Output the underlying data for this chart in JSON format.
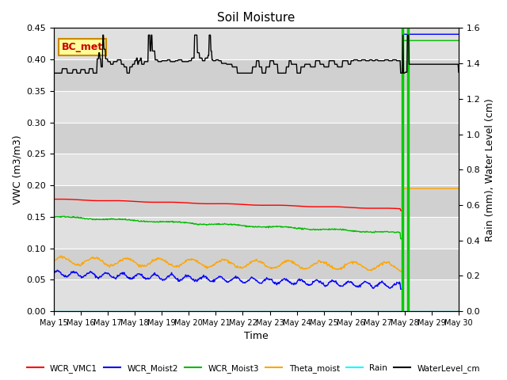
{
  "title": "Soil Moisture",
  "xlabel": "Time",
  "ylabel_left": "VWC (m3/m3)",
  "ylabel_right": "Rain (mm), Water Level (cm)",
  "xlim_days": [
    0,
    15
  ],
  "ylim_left": [
    0.0,
    0.45
  ],
  "ylim_right": [
    0.0,
    1.6
  ],
  "bg_color": "#e8e8e8",
  "bg_color2": "#d0d0d0",
  "bc_met_label": "BC_met",
  "legend_labels": [
    "WCR_VMC1",
    "WCR_Moist2",
    "WCR_Moist3",
    "Theta_moist",
    "Rain",
    "WaterLevel_cm"
  ],
  "legend_colors": [
    "#ff0000",
    "#0000ff",
    "#00bb00",
    "#ffa500",
    "#00ffff",
    "#000000"
  ],
  "title_fontsize": 11,
  "axis_fontsize": 9,
  "tick_fontsize": 8
}
